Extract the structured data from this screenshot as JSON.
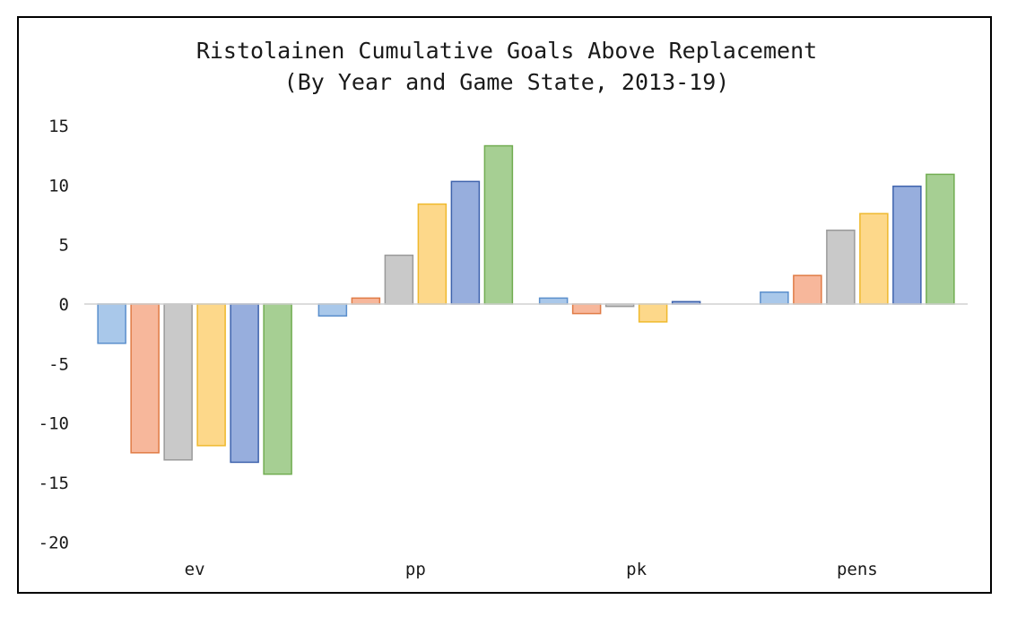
{
  "chart_data": {
    "type": "bar",
    "title": "Ristolainen Cumulative Goals Above Replacement",
    "subtitle": "(By Year and Game State, 2013-19)",
    "xlabel": "",
    "ylabel": "",
    "categories": [
      "ev",
      "pp",
      "pk",
      "pens"
    ],
    "ylim": [
      -20,
      15
    ],
    "yticks": [
      15,
      10,
      5,
      0,
      -5,
      -10,
      -15,
      -20
    ],
    "grid": false,
    "legend": "none",
    "series": [
      {
        "values": [
          -3.3,
          -1.0,
          0.5,
          1.0
        ],
        "fill": "#a9c8ea",
        "stroke": "#5b8fcc"
      },
      {
        "values": [
          -12.5,
          0.5,
          -0.8,
          2.4
        ],
        "fill": "#f7b79b",
        "stroke": "#e07b45"
      },
      {
        "values": [
          -13.1,
          4.1,
          -0.2,
          6.2
        ],
        "fill": "#c9c9c9",
        "stroke": "#9a9a9a"
      },
      {
        "values": [
          -11.9,
          8.4,
          -1.5,
          7.6
        ],
        "fill": "#fdd88a",
        "stroke": "#efb92d"
      },
      {
        "values": [
          -13.3,
          10.3,
          0.2,
          9.9
        ],
        "fill": "#97aedd",
        "stroke": "#3e63ad"
      },
      {
        "values": [
          -14.3,
          13.3,
          0.0,
          10.9
        ],
        "fill": "#a6cf93",
        "stroke": "#72ad52"
      }
    ]
  }
}
